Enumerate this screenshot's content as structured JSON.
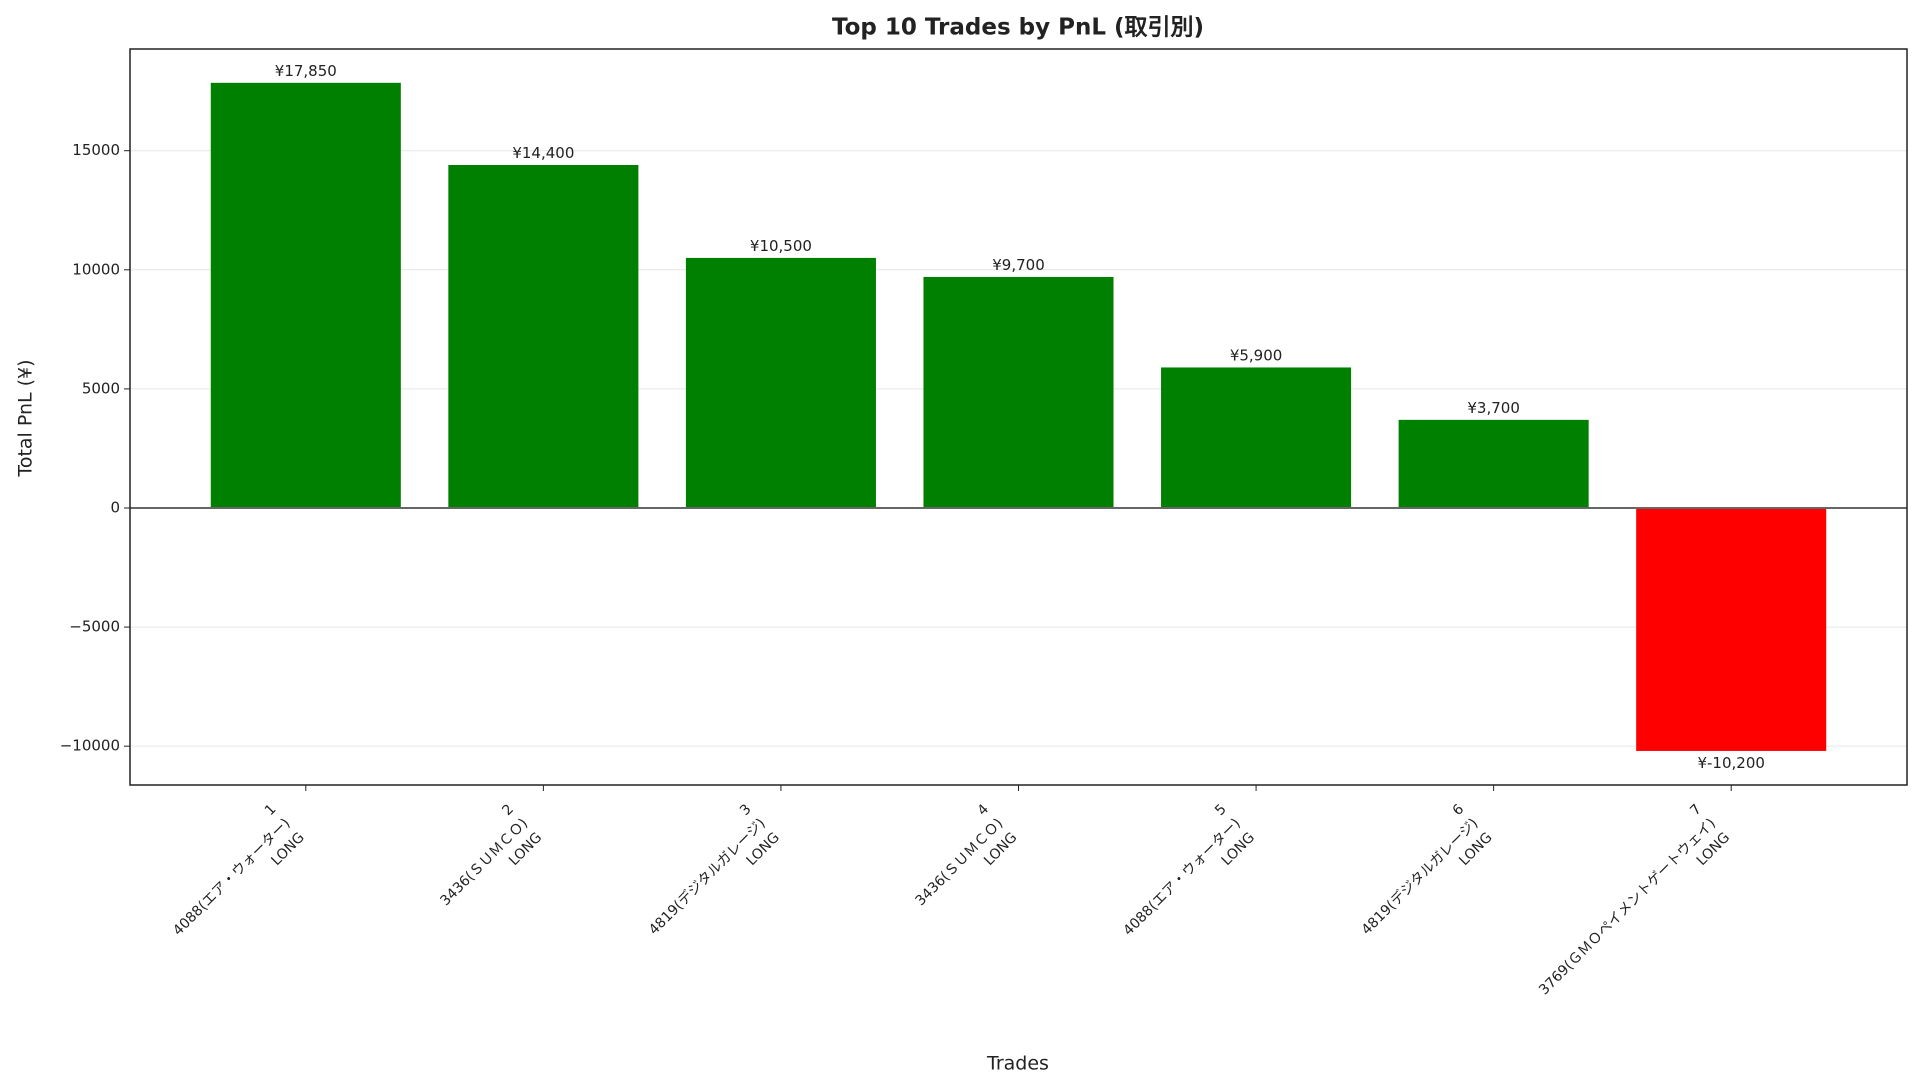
{
  "chart_data": {
    "type": "bar",
    "title": "Top 10 Trades by PnL (取引別)",
    "xlabel": "Trades",
    "ylabel": "Total PnL (¥)",
    "categories": [
      [
        "1",
        "4088(エア・ウォーター)",
        "LONG"
      ],
      [
        "2",
        "3436(ＳＵＭＣＯ)",
        "LONG"
      ],
      [
        "3",
        "4819(デジタルガレージ)",
        "LONG"
      ],
      [
        "4",
        "3436(ＳＵＭＣＯ)",
        "LONG"
      ],
      [
        "5",
        "4088(エア・ウォーター)",
        "LONG"
      ],
      [
        "6",
        "4819(デジタルガレージ)",
        "LONG"
      ],
      [
        "7",
        "3769(ＧＭＯペイメントゲートウェイ)",
        "LONG"
      ]
    ],
    "values": [
      17850,
      14400,
      10500,
      9700,
      5900,
      3700,
      -10200
    ],
    "value_labels": [
      "¥17,850",
      "¥14,400",
      "¥10,500",
      "¥9,700",
      "¥5,900",
      "¥3,700",
      "¥-10,200"
    ],
    "colors": [
      "#008000",
      "#008000",
      "#008000",
      "#008000",
      "#008000",
      "#008000",
      "#ff0000"
    ],
    "ylim": [
      -11630,
      19270
    ],
    "yticks": [
      {
        "value": -10000,
        "label": "−10000"
      },
      {
        "value": -5000,
        "label": "−5000"
      },
      0,
      5000,
      10000,
      15000
    ],
    "grid": true,
    "zero_line_color": "#666666"
  }
}
